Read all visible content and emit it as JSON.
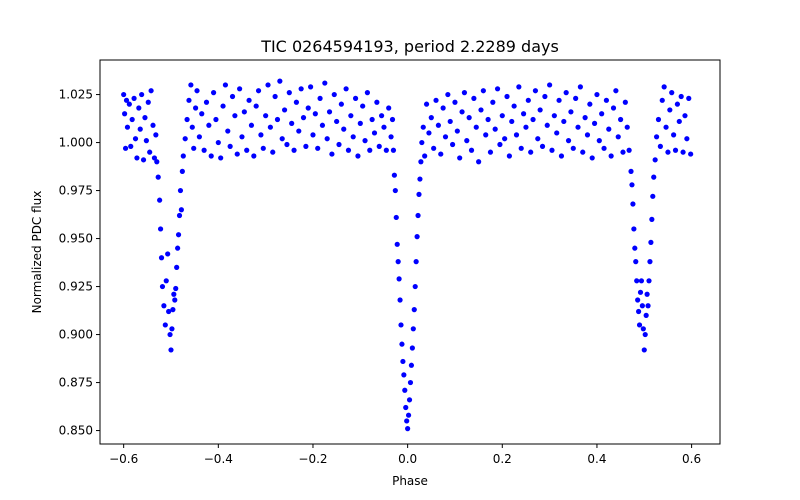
{
  "chart_data": {
    "type": "scatter",
    "title": "TIC 0264594193, period 2.2289 days",
    "xlabel": "Phase",
    "ylabel": "Normalized PDC flux",
    "xlim": [
      -0.65,
      0.66
    ],
    "ylim": [
      0.843,
      1.043
    ],
    "xticks": [
      -0.6,
      -0.4,
      -0.2,
      0.0,
      0.2,
      0.4,
      0.6
    ],
    "xtick_labels": [
      "−0.6",
      "−0.4",
      "−0.2",
      "0.0",
      "0.2",
      "0.4",
      "0.6"
    ],
    "yticks": [
      0.85,
      0.875,
      0.9,
      0.925,
      0.95,
      0.975,
      1.0,
      1.025
    ],
    "ytick_labels": [
      "0.850",
      "0.875",
      "0.900",
      "0.925",
      "0.950",
      "0.975",
      "1.000",
      "1.025"
    ],
    "grid": false,
    "marker_color": "#0000ff",
    "series": [
      {
        "points": [
          [
            -0.6,
            1.025
          ],
          [
            -0.598,
            1.015
          ],
          [
            -0.596,
            0.997
          ],
          [
            -0.594,
            1.022
          ],
          [
            -0.592,
            1.008
          ],
          [
            -0.588,
            1.02
          ],
          [
            -0.585,
            0.998
          ],
          [
            -0.582,
            1.012
          ],
          [
            -0.578,
            1.023
          ],
          [
            -0.575,
            1.002
          ],
          [
            -0.572,
            0.992
          ],
          [
            -0.568,
            1.018
          ],
          [
            -0.565,
            1.007
          ],
          [
            -0.562,
            1.025
          ],
          [
            -0.558,
            0.991
          ],
          [
            -0.555,
            1.013
          ],
          [
            -0.552,
            1.001
          ],
          [
            -0.548,
            1.021
          ],
          [
            -0.545,
            0.995
          ],
          [
            -0.542,
            1.027
          ],
          [
            -0.538,
            1.009
          ],
          [
            -0.535,
            0.992
          ],
          [
            -0.532,
            1.004
          ],
          [
            -0.53,
            0.99
          ],
          [
            -0.527,
            0.982
          ],
          [
            -0.524,
            0.97
          ],
          [
            -0.522,
            0.955
          ],
          [
            -0.52,
            0.94
          ],
          [
            -0.518,
            0.925
          ],
          [
            -0.515,
            0.915
          ],
          [
            -0.512,
            0.905
          ],
          [
            -0.51,
            0.928
          ],
          [
            -0.507,
            0.942
          ],
          [
            -0.505,
            0.912
          ],
          [
            -0.502,
            0.9
          ],
          [
            -0.5,
            0.892
          ],
          [
            -0.498,
            0.903
          ],
          [
            -0.496,
            0.913
          ],
          [
            -0.494,
            0.921
          ],
          [
            -0.492,
            0.918
          ],
          [
            -0.49,
            0.924
          ],
          [
            -0.488,
            0.935
          ],
          [
            -0.486,
            0.945
          ],
          [
            -0.484,
            0.952
          ],
          [
            -0.482,
            0.962
          ],
          [
            -0.48,
            0.975
          ],
          [
            -0.478,
            0.965
          ],
          [
            -0.476,
            0.985
          ],
          [
            -0.474,
            0.993
          ],
          [
            -0.47,
            1.002
          ],
          [
            -0.466,
            1.012
          ],
          [
            -0.462,
            1.022
          ],
          [
            -0.458,
            1.03
          ],
          [
            -0.455,
            1.008
          ],
          [
            -0.452,
            0.997
          ],
          [
            -0.448,
            1.018
          ],
          [
            -0.445,
            1.027
          ],
          [
            -0.44,
            1.003
          ],
          [
            -0.435,
            1.015
          ],
          [
            -0.43,
            0.996
          ],
          [
            -0.425,
            1.021
          ],
          [
            -0.42,
            1.009
          ],
          [
            -0.415,
            0.993
          ],
          [
            -0.41,
            1.026
          ],
          [
            -0.405,
            1.012
          ],
          [
            -0.4,
            1.0
          ],
          [
            -0.395,
            0.992
          ],
          [
            -0.39,
            1.019
          ],
          [
            -0.385,
            1.03
          ],
          [
            -0.38,
            1.006
          ],
          [
            -0.375,
            0.998
          ],
          [
            -0.37,
            1.024
          ],
          [
            -0.365,
            1.014
          ],
          [
            -0.36,
            0.994
          ],
          [
            -0.355,
            1.028
          ],
          [
            -0.35,
            1.003
          ],
          [
            -0.345,
            1.016
          ],
          [
            -0.34,
            0.996
          ],
          [
            -0.335,
            1.022
          ],
          [
            -0.33,
            1.009
          ],
          [
            -0.325,
            0.993
          ],
          [
            -0.32,
            1.019
          ],
          [
            -0.315,
            1.027
          ],
          [
            -0.31,
            1.004
          ],
          [
            -0.305,
            0.997
          ],
          [
            -0.3,
            1.014
          ],
          [
            -0.295,
            1.03
          ],
          [
            -0.29,
            1.008
          ],
          [
            -0.285,
            0.995
          ],
          [
            -0.28,
            1.024
          ],
          [
            -0.275,
            1.012
          ],
          [
            -0.27,
            1.032
          ],
          [
            -0.265,
            1.002
          ],
          [
            -0.26,
            1.017
          ],
          [
            -0.255,
            0.999
          ],
          [
            -0.25,
            1.026
          ],
          [
            -0.245,
            1.01
          ],
          [
            -0.24,
            0.996
          ],
          [
            -0.235,
            1.021
          ],
          [
            -0.23,
            1.006
          ],
          [
            -0.225,
            1.028
          ],
          [
            -0.22,
            1.013
          ],
          [
            -0.215,
            0.998
          ],
          [
            -0.21,
            1.018
          ],
          [
            -0.205,
            1.029
          ],
          [
            -0.2,
            1.004
          ],
          [
            -0.195,
            1.015
          ],
          [
            -0.19,
            0.997
          ],
          [
            -0.185,
            1.023
          ],
          [
            -0.18,
            1.009
          ],
          [
            -0.175,
            1.031
          ],
          [
            -0.17,
            1.002
          ],
          [
            -0.165,
            1.016
          ],
          [
            -0.16,
            0.994
          ],
          [
            -0.155,
            1.025
          ],
          [
            -0.15,
            1.011
          ],
          [
            -0.145,
            0.999
          ],
          [
            -0.14,
            1.02
          ],
          [
            -0.135,
            1.007
          ],
          [
            -0.13,
            1.028
          ],
          [
            -0.125,
            0.996
          ],
          [
            -0.12,
            1.014
          ],
          [
            -0.115,
            1.003
          ],
          [
            -0.11,
            1.023
          ],
          [
            -0.105,
            0.993
          ],
          [
            -0.1,
            1.01
          ],
          [
            -0.095,
            1.019
          ],
          [
            -0.09,
            1.001
          ],
          [
            -0.085,
            1.026
          ],
          [
            -0.08,
            0.996
          ],
          [
            -0.075,
            1.012
          ],
          [
            -0.07,
            1.005
          ],
          [
            -0.065,
            1.021
          ],
          [
            -0.06,
            0.998
          ],
          [
            -0.055,
            1.014
          ],
          [
            -0.05,
            1.008
          ],
          [
            -0.045,
            0.996
          ],
          [
            -0.04,
            1.018
          ],
          [
            -0.035,
            1.003
          ],
          [
            -0.032,
            1.012
          ],
          [
            -0.03,
            0.996
          ],
          [
            -0.028,
            0.983
          ],
          [
            -0.026,
            0.975
          ],
          [
            -0.024,
            0.961
          ],
          [
            -0.022,
            0.947
          ],
          [
            -0.02,
            0.938
          ],
          [
            -0.018,
            0.929
          ],
          [
            -0.016,
            0.918
          ],
          [
            -0.014,
            0.905
          ],
          [
            -0.012,
            0.895
          ],
          [
            -0.01,
            0.886
          ],
          [
            -0.008,
            0.879
          ],
          [
            -0.006,
            0.871
          ],
          [
            -0.004,
            0.862
          ],
          [
            -0.002,
            0.855
          ],
          [
            0.0,
            0.851
          ],
          [
            0.002,
            0.858
          ],
          [
            0.004,
            0.866
          ],
          [
            0.006,
            0.875
          ],
          [
            0.008,
            0.884
          ],
          [
            0.01,
            0.893
          ],
          [
            0.012,
            0.903
          ],
          [
            0.014,
            0.913
          ],
          [
            0.016,
            0.925
          ],
          [
            0.018,
            0.938
          ],
          [
            0.02,
            0.951
          ],
          [
            0.022,
            0.962
          ],
          [
            0.024,
            0.973
          ],
          [
            0.026,
            0.981
          ],
          [
            0.028,
            0.99
          ],
          [
            0.03,
            1.0
          ],
          [
            0.033,
            1.008
          ],
          [
            0.036,
            0.993
          ],
          [
            0.04,
            1.02
          ],
          [
            0.045,
            1.005
          ],
          [
            0.05,
            1.013
          ],
          [
            0.055,
            0.997
          ],
          [
            0.06,
            1.022
          ],
          [
            0.065,
            1.009
          ],
          [
            0.07,
            0.994
          ],
          [
            0.075,
            1.018
          ],
          [
            0.08,
            1.003
          ],
          [
            0.085,
            1.025
          ],
          [
            0.09,
            1.011
          ],
          [
            0.095,
            0.999
          ],
          [
            0.1,
            1.021
          ],
          [
            0.105,
            1.006
          ],
          [
            0.11,
            0.992
          ],
          [
            0.115,
            1.016
          ],
          [
            0.12,
            1.026
          ],
          [
            0.125,
            1.001
          ],
          [
            0.13,
            1.013
          ],
          [
            0.135,
            0.996
          ],
          [
            0.14,
            1.023
          ],
          [
            0.145,
            1.008
          ],
          [
            0.15,
            0.99
          ],
          [
            0.155,
            1.017
          ],
          [
            0.16,
            1.027
          ],
          [
            0.165,
            1.004
          ],
          [
            0.17,
            1.012
          ],
          [
            0.175,
            0.995
          ],
          [
            0.18,
            1.021
          ],
          [
            0.185,
            1.007
          ],
          [
            0.19,
            1.028
          ],
          [
            0.195,
            0.999
          ],
          [
            0.2,
            1.014
          ],
          [
            0.205,
            1.002
          ],
          [
            0.21,
            1.024
          ],
          [
            0.215,
            0.993
          ],
          [
            0.22,
            1.011
          ],
          [
            0.225,
            1.019
          ],
          [
            0.23,
            1.004
          ],
          [
            0.235,
            1.029
          ],
          [
            0.24,
            0.997
          ],
          [
            0.245,
            1.015
          ],
          [
            0.25,
            1.008
          ],
          [
            0.255,
            1.022
          ],
          [
            0.26,
            0.995
          ],
          [
            0.265,
            1.012
          ],
          [
            0.27,
            1.027
          ],
          [
            0.275,
            1.002
          ],
          [
            0.28,
            1.017
          ],
          [
            0.285,
            0.998
          ],
          [
            0.29,
            1.024
          ],
          [
            0.295,
            1.009
          ],
          [
            0.3,
            1.03
          ],
          [
            0.305,
            0.996
          ],
          [
            0.31,
            1.014
          ],
          [
            0.315,
            1.005
          ],
          [
            0.32,
            1.022
          ],
          [
            0.325,
            0.993
          ],
          [
            0.33,
            1.011
          ],
          [
            0.335,
            1.026
          ],
          [
            0.34,
            1.001
          ],
          [
            0.345,
            1.016
          ],
          [
            0.35,
            0.997
          ],
          [
            0.355,
            1.023
          ],
          [
            0.36,
            1.008
          ],
          [
            0.365,
            1.029
          ],
          [
            0.37,
            0.995
          ],
          [
            0.375,
            1.013
          ],
          [
            0.38,
            1.004
          ],
          [
            0.385,
            1.02
          ],
          [
            0.39,
            0.992
          ],
          [
            0.395,
            1.01
          ],
          [
            0.4,
            1.025
          ],
          [
            0.405,
            1.001
          ],
          [
            0.41,
            1.015
          ],
          [
            0.415,
            0.997
          ],
          [
            0.42,
            1.022
          ],
          [
            0.425,
            1.007
          ],
          [
            0.43,
            0.993
          ],
          [
            0.435,
            1.018
          ],
          [
            0.44,
            1.027
          ],
          [
            0.445,
            1.003
          ],
          [
            0.45,
            1.012
          ],
          [
            0.455,
            0.995
          ],
          [
            0.46,
            1.021
          ],
          [
            0.464,
            1.008
          ],
          [
            0.468,
            0.996
          ],
          [
            0.472,
            0.985
          ],
          [
            0.474,
            0.978
          ],
          [
            0.476,
            0.968
          ],
          [
            0.478,
            0.955
          ],
          [
            0.48,
            0.945
          ],
          [
            0.482,
            0.938
          ],
          [
            0.484,
            0.928
          ],
          [
            0.486,
            0.918
          ],
          [
            0.488,
            0.912
          ],
          [
            0.49,
            0.905
          ],
          [
            0.492,
            0.922
          ],
          [
            0.494,
            0.928
          ],
          [
            0.496,
            0.915
          ],
          [
            0.498,
            0.903
          ],
          [
            0.5,
            0.892
          ],
          [
            0.502,
            0.9
          ],
          [
            0.504,
            0.91
          ],
          [
            0.506,
            0.921
          ],
          [
            0.508,
            0.915
          ],
          [
            0.51,
            0.928
          ],
          [
            0.512,
            0.938
          ],
          [
            0.514,
            0.948
          ],
          [
            0.516,
            0.96
          ],
          [
            0.518,
            0.972
          ],
          [
            0.52,
            0.982
          ],
          [
            0.523,
            0.991
          ],
          [
            0.526,
            1.003
          ],
          [
            0.53,
            1.012
          ],
          [
            0.534,
            0.998
          ],
          [
            0.538,
            1.022
          ],
          [
            0.542,
            1.029
          ],
          [
            0.546,
            1.008
          ],
          [
            0.55,
            0.995
          ],
          [
            0.554,
            1.017
          ],
          [
            0.558,
            1.026
          ],
          [
            0.562,
            1.004
          ],
          [
            0.566,
            0.996
          ],
          [
            0.57,
            1.02
          ],
          [
            0.574,
            1.011
          ],
          [
            0.578,
            1.024
          ],
          [
            0.582,
            0.995
          ],
          [
            0.586,
            1.014
          ],
          [
            0.59,
            1.002
          ],
          [
            0.594,
            1.023
          ],
          [
            0.598,
            0.994
          ]
        ]
      }
    ]
  }
}
